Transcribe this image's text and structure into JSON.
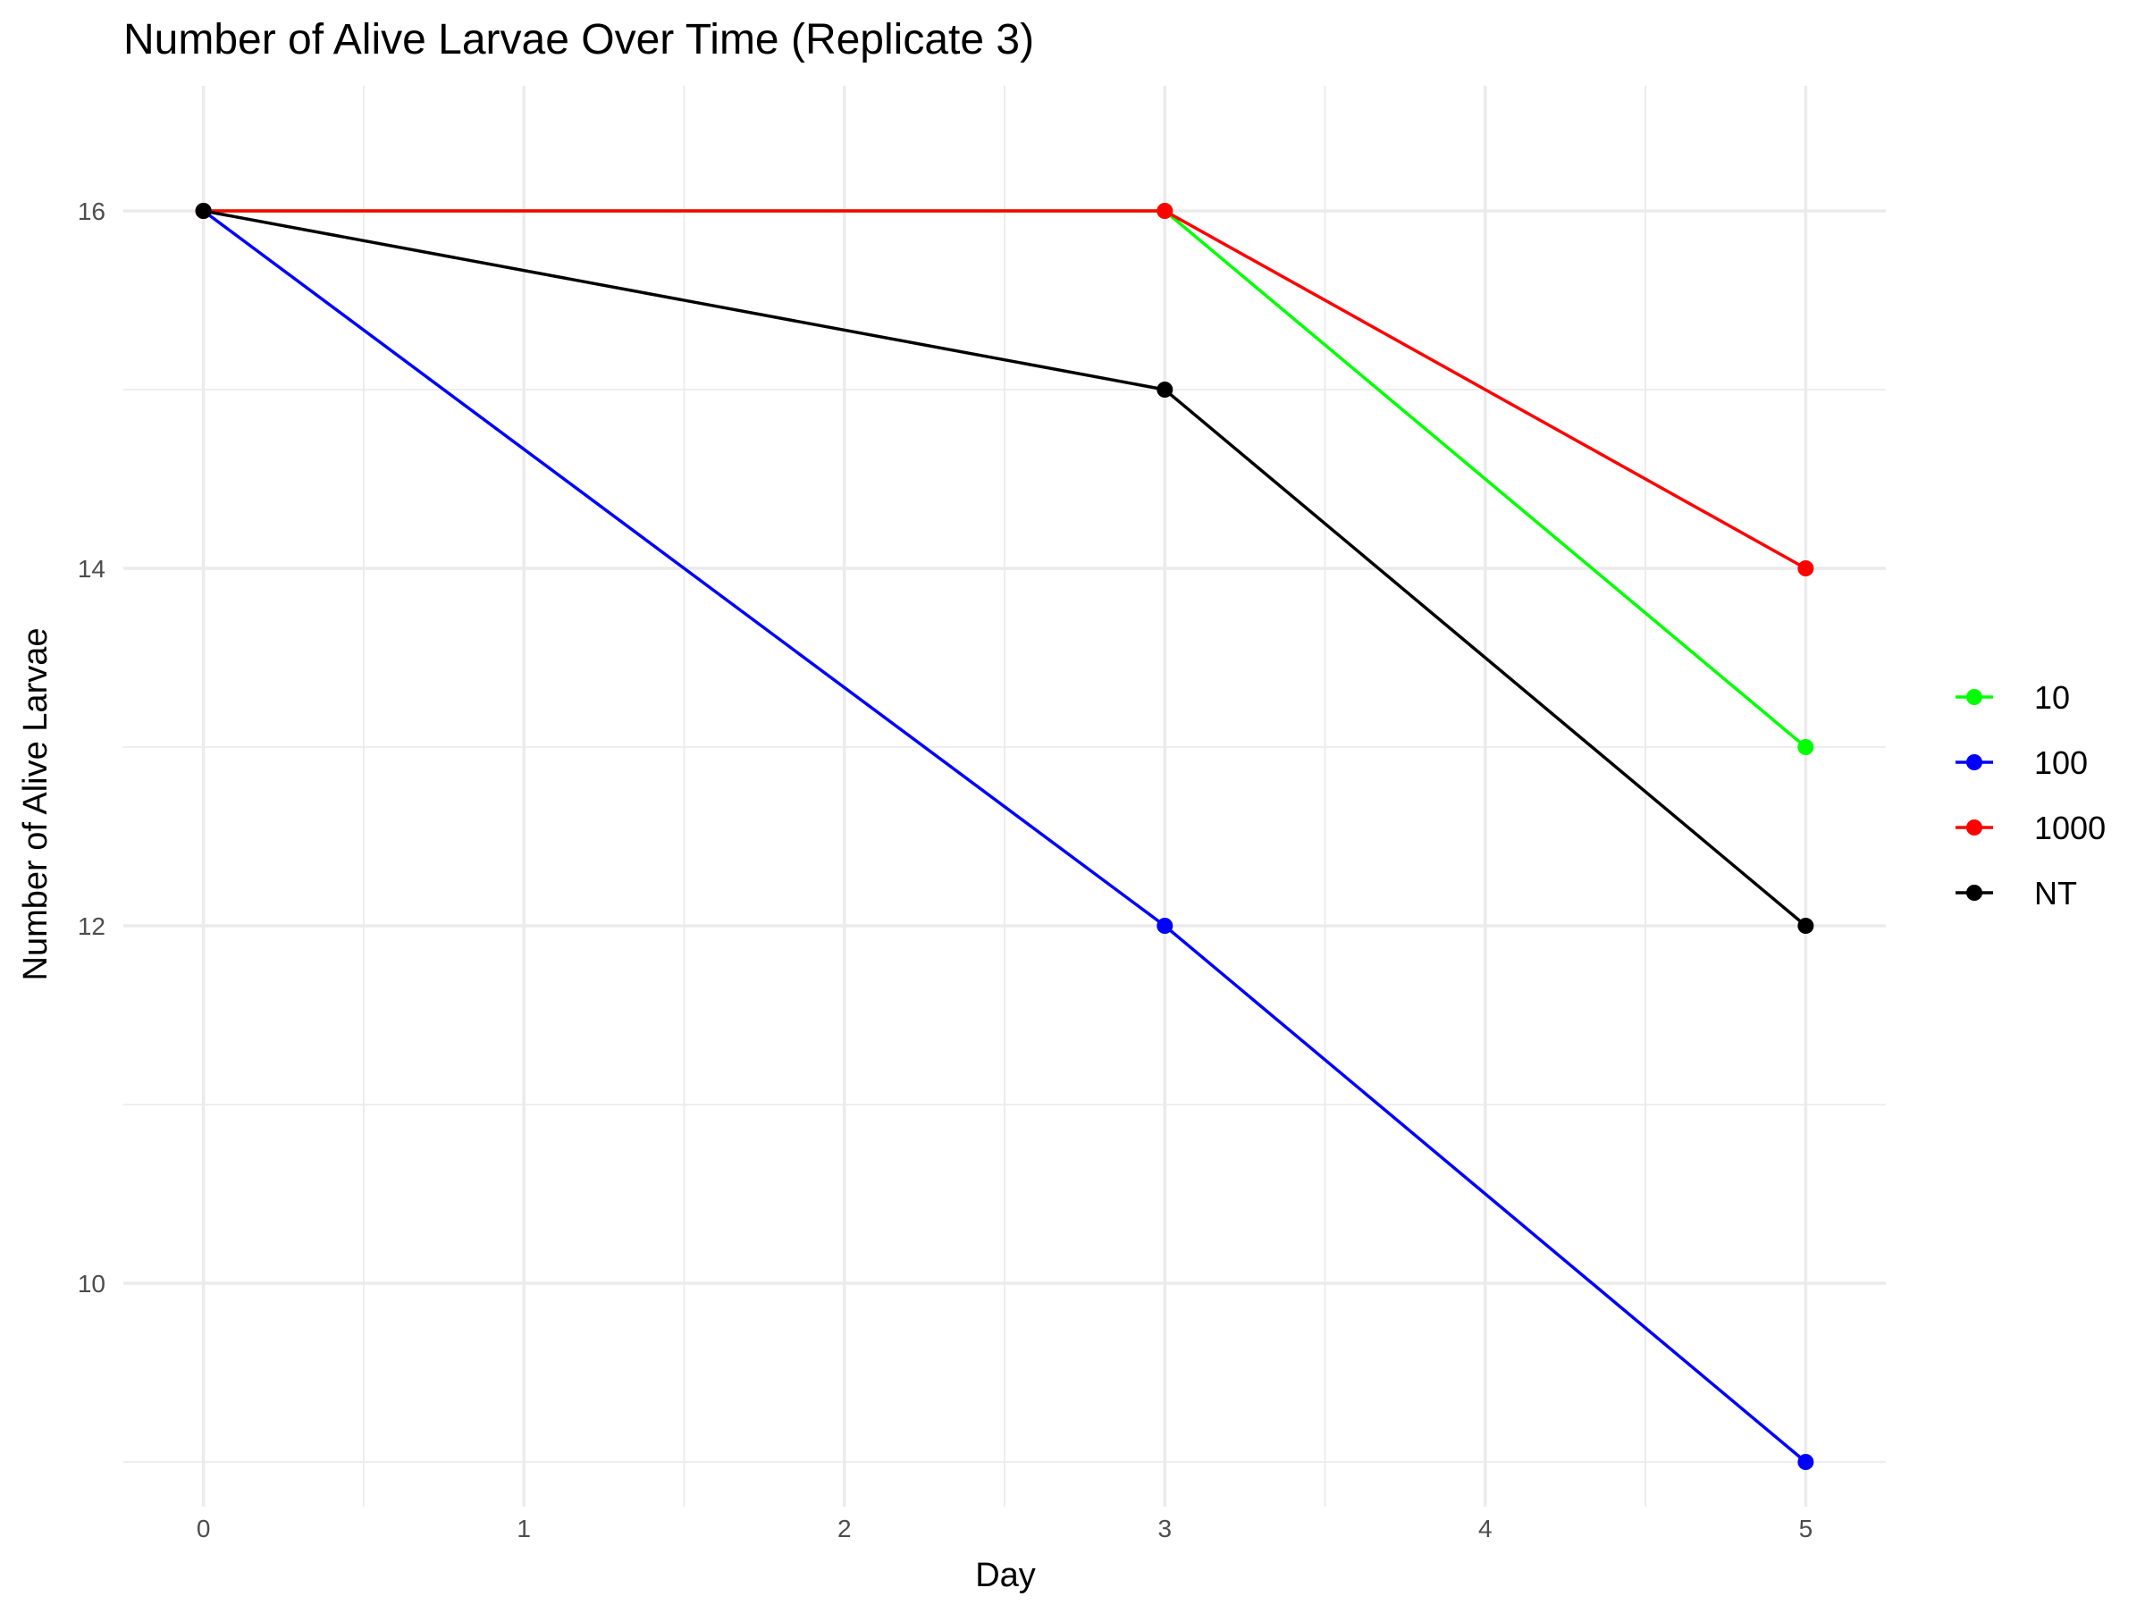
{
  "chart_data": {
    "type": "line",
    "title": "Number of Alive Larvae Over Time (Replicate 3)",
    "xlabel": "Day",
    "ylabel": "Number of Alive Larvae",
    "x": [
      0,
      3,
      5
    ],
    "xlim": [
      -0.25,
      5.25
    ],
    "ylim": [
      8.75,
      16.7
    ],
    "x_ticks": [
      0,
      1,
      2,
      3,
      4,
      5
    ],
    "y_ticks": [
      10,
      12,
      14,
      16
    ],
    "grid": true,
    "legend_position": "right",
    "series": [
      {
        "name": "10",
        "color": "#00ff00",
        "values": [
          16,
          16,
          13
        ]
      },
      {
        "name": "100",
        "color": "#0000ff",
        "values": [
          16,
          12,
          9
        ]
      },
      {
        "name": "1000",
        "color": "#ff0000",
        "values": [
          16,
          16,
          14
        ]
      },
      {
        "name": "NT",
        "color": "#000000",
        "values": [
          16,
          15,
          12
        ]
      }
    ]
  }
}
